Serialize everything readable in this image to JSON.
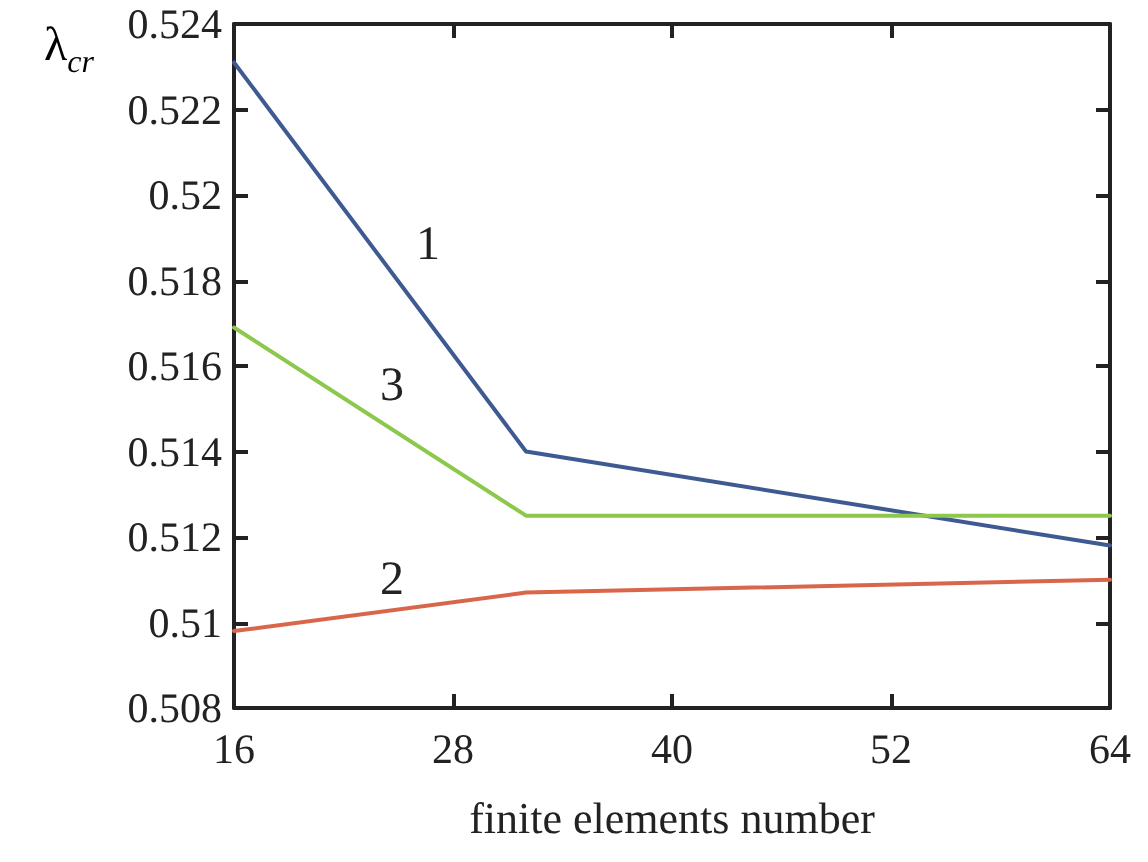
{
  "chart_data": {
    "type": "line",
    "xlabel": "finite elements number",
    "ylabel": "λ$_{cr}$",
    "x": [
      16,
      32,
      64
    ],
    "series": [
      {
        "name": "1",
        "color": "#3f5a92",
        "values": [
          0.5231,
          0.514,
          0.5118
        ]
      },
      {
        "name": "2",
        "color": "#d9664a",
        "values": [
          0.5098,
          0.5107,
          0.511
        ]
      },
      {
        "name": "3",
        "color": "#8cc84b",
        "values": [
          0.5169,
          0.5125,
          0.5125
        ]
      }
    ],
    "xlim": [
      16,
      64
    ],
    "xticks": [
      16,
      28,
      40,
      52,
      64
    ],
    "ylim": [
      0.508,
      0.524
    ],
    "yticks": [
      0.508,
      0.51,
      0.512,
      0.514,
      0.516,
      0.518,
      0.52,
      0.522,
      0.524
    ],
    "grid": false,
    "legend": false,
    "marker": "none",
    "line_style": "solid"
  }
}
